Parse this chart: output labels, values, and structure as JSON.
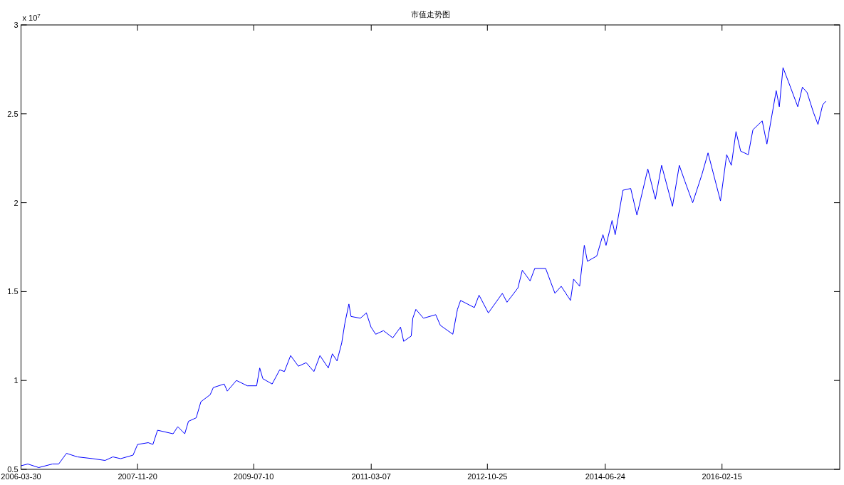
{
  "chart_data": {
    "type": "line",
    "title": "市值走势图",
    "annotations": [
      "x 10$^{7}$"
    ],
    "xlim": [
      "2006-03-30",
      "2017-10-13"
    ],
    "xticks": [
      "2006-03-30",
      "2007-11-20",
      "2009-07-10",
      "2011-03-07",
      "2012-10-25",
      "2014-06-24",
      "2016-02-15"
    ],
    "ylim": [
      0.5,
      3
    ],
    "yticks": [
      0.5,
      1,
      1.5,
      2,
      2.5,
      3
    ],
    "x": [
      "2006-03-30",
      "2006-05-04",
      "2006-06-29",
      "2006-09-08",
      "2006-10-10",
      "2006-11-19",
      "2007-01-14",
      "2007-04-04",
      "2007-06-06",
      "2007-07-16",
      "2007-08-25",
      "2007-10-28",
      "2007-11-20",
      "2008-01-14",
      "2008-02-07",
      "2008-03-02",
      "2008-05-21",
      "2008-06-14",
      "2008-07-20",
      "2008-08-08",
      "2008-09-17",
      "2008-10-11",
      "2008-11-28",
      "2008-12-14",
      "2009-02-08",
      "2009-02-24",
      "2009-04-12",
      "2009-06-07",
      "2009-07-25",
      "2009-08-10",
      "2009-08-26",
      "2009-10-13",
      "2009-11-21",
      "2009-12-15",
      "2010-01-16",
      "2010-02-25",
      "2010-04-06",
      "2010-05-16",
      "2010-06-16",
      "2010-07-29",
      "2010-08-19",
      "2010-09-12",
      "2010-10-06",
      "2010-10-22",
      "2010-11-12",
      "2010-11-23",
      "2011-01-10",
      "2011-02-10",
      "2011-03-06",
      "2011-03-30",
      "2011-05-09",
      "2011-06-26",
      "2011-08-05",
      "2011-08-21",
      "2011-09-29",
      "2011-10-07",
      "2011-10-23",
      "2011-12-01",
      "2012-02-02",
      "2012-02-26",
      "2012-04-30",
      "2012-05-24",
      "2012-06-09",
      "2012-08-19",
      "2012-09-12",
      "2012-10-30",
      "2013-01-10",
      "2013-02-03",
      "2013-03-31",
      "2013-04-23",
      "2013-06-02",
      "2013-06-26",
      "2013-08-21",
      "2013-10-08",
      "2013-11-09",
      "2013-12-27",
      "2014-01-12",
      "2014-02-12",
      "2014-03-08",
      "2014-03-24",
      "2014-05-11",
      "2014-06-12",
      "2014-06-28",
      "2014-07-29",
      "2014-08-14",
      "2014-09-23",
      "2014-11-02",
      "2014-12-04",
      "2015-01-29",
      "2015-03-09",
      "2015-04-10",
      "2015-06-05",
      "2015-07-10",
      "2015-08-08",
      "2015-09-17",
      "2015-11-04",
      "2015-12-05",
      "2016-02-07",
      "2016-03-10",
      "2016-04-03",
      "2016-04-27",
      "2016-05-21",
      "2016-06-29",
      "2016-07-23",
      "2016-09-09",
      "2016-10-03",
      "2016-11-20",
      "2016-12-06",
      "2016-12-25",
      "2017-01-22",
      "2017-03-11",
      "2017-04-04",
      "2017-04-28",
      "2017-05-30",
      "2017-06-23",
      "2017-07-17",
      "2017-08-02"
    ],
    "series": [
      {
        "color": "#0000ff",
        "values": [
          0.52,
          0.53,
          0.51,
          0.53,
          0.53,
          0.59,
          0.57,
          0.56,
          0.55,
          0.57,
          0.56,
          0.58,
          0.64,
          0.65,
          0.64,
          0.72,
          0.7,
          0.74,
          0.7,
          0.77,
          0.79,
          0.88,
          0.92,
          0.96,
          0.98,
          0.94,
          1.0,
          0.97,
          0.97,
          1.07,
          1.01,
          0.98,
          1.06,
          1.05,
          1.14,
          1.08,
          1.1,
          1.05,
          1.14,
          1.07,
          1.15,
          1.11,
          1.21,
          1.32,
          1.43,
          1.36,
          1.35,
          1.38,
          1.3,
          1.26,
          1.28,
          1.24,
          1.3,
          1.22,
          1.25,
          1.35,
          1.4,
          1.35,
          1.37,
          1.31,
          1.26,
          1.4,
          1.45,
          1.41,
          1.48,
          1.38,
          1.49,
          1.44,
          1.52,
          1.62,
          1.56,
          1.63,
          1.63,
          1.49,
          1.53,
          1.45,
          1.57,
          1.53,
          1.76,
          1.67,
          1.7,
          1.82,
          1.76,
          1.9,
          1.82,
          2.07,
          2.08,
          1.93,
          2.19,
          2.02,
          2.21,
          1.98,
          2.21,
          2.12,
          2.0,
          2.16,
          2.28,
          2.01,
          2.27,
          2.21,
          2.4,
          2.29,
          2.27,
          2.41,
          2.46,
          2.33,
          2.63,
          2.54,
          2.76,
          2.68,
          2.54,
          2.65,
          2.62,
          2.51,
          2.44,
          2.55,
          2.57
        ]
      }
    ]
  }
}
